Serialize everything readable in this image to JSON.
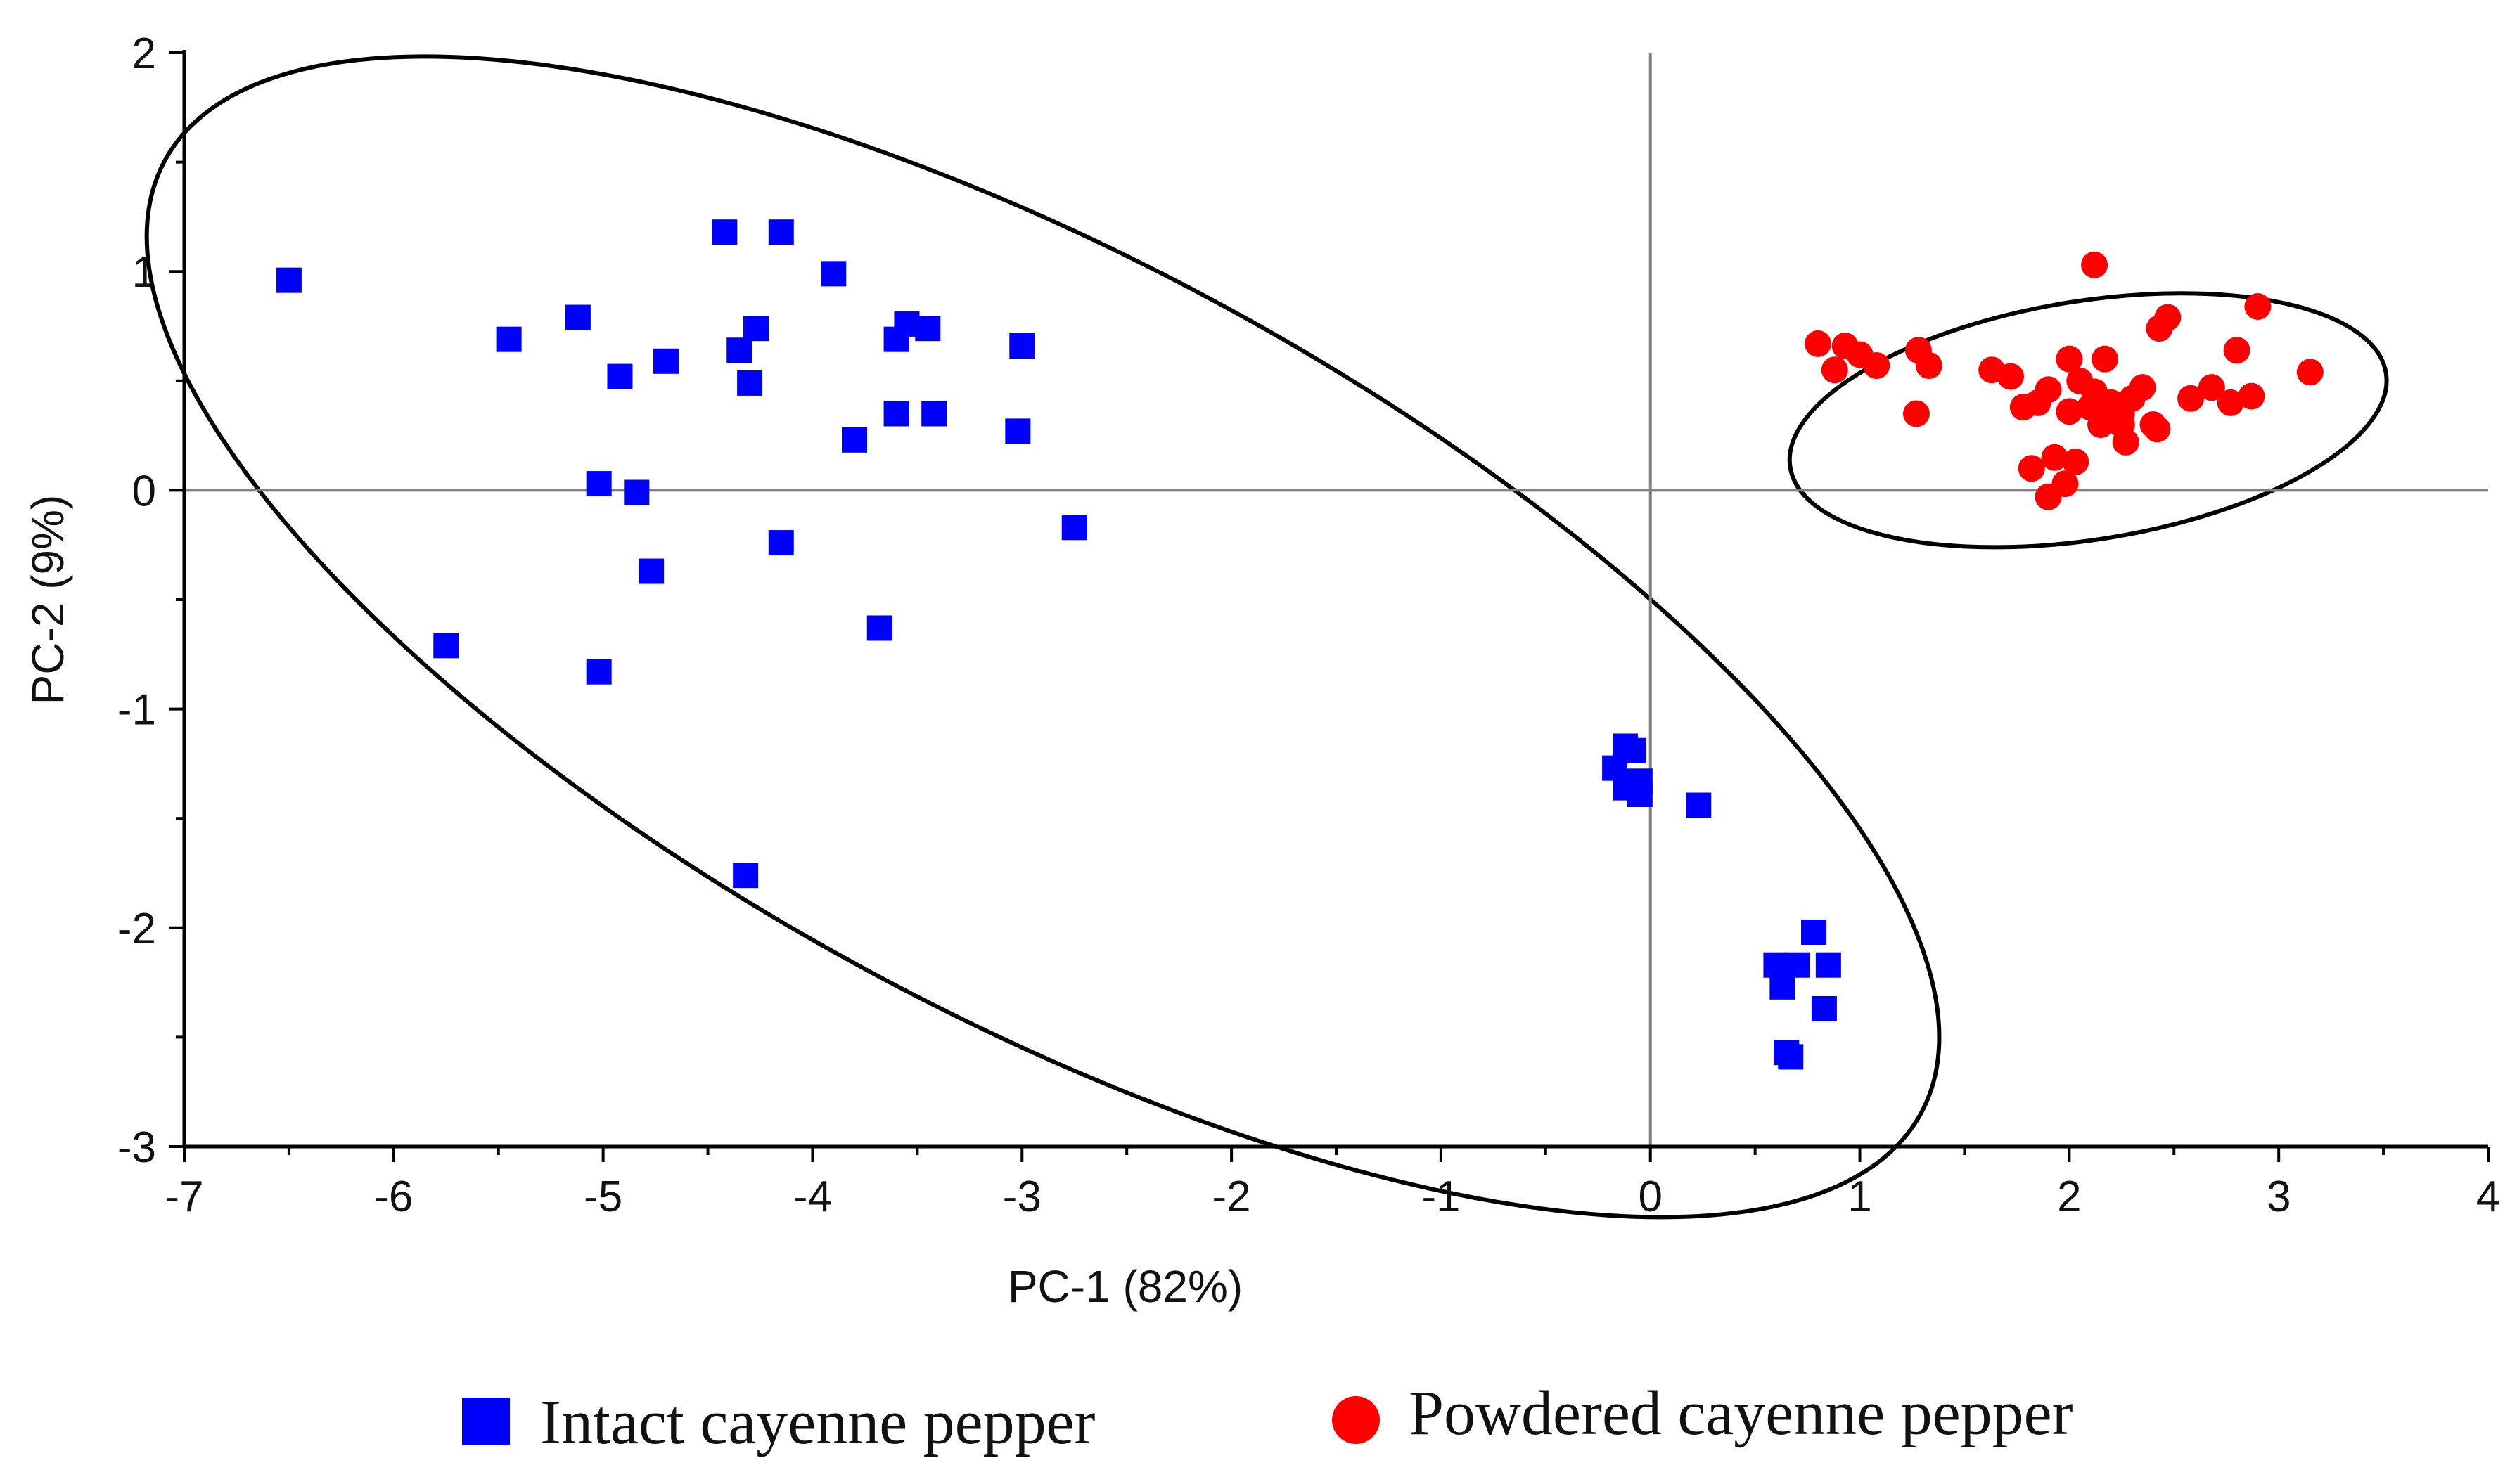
{
  "chart_data": {
    "type": "scatter",
    "title": "",
    "xlabel": "PC-1 (82%)",
    "ylabel": "PC-2 (9%)",
    "xlim": [
      -7,
      4
    ],
    "ylim": [
      -3,
      2
    ],
    "xticks": [
      -7,
      -6,
      -5,
      -4,
      -3,
      -2,
      -1,
      0,
      1,
      2,
      3,
      4
    ],
    "yticks": [
      -3,
      -2,
      -1,
      0,
      1,
      2
    ],
    "xtick_labels": [
      "-7",
      "-6",
      "-5",
      "-4",
      "-3",
      "-2",
      "-1",
      "0",
      "1",
      "2",
      "3",
      "4"
    ],
    "ytick_labels": [
      "-3",
      "-2",
      "-1",
      "0",
      "1",
      "2"
    ],
    "reference_lines": {
      "x": 0,
      "y": 0,
      "color": "#808080"
    },
    "grid": false,
    "legend_position": "bottom",
    "series": [
      {
        "name": "Intact cayenne pepper",
        "marker": "square",
        "color": "#0000ff",
        "points": [
          [
            -6.5,
            0.96
          ],
          [
            -5.45,
            0.69
          ],
          [
            -5.12,
            0.79
          ],
          [
            -4.92,
            0.52
          ],
          [
            -4.7,
            0.59
          ],
          [
            -4.42,
            1.18
          ],
          [
            -4.15,
            1.18
          ],
          [
            -4.35,
            0.64
          ],
          [
            -4.27,
            0.74
          ],
          [
            -4.3,
            0.49
          ],
          [
            -3.9,
            0.99
          ],
          [
            -3.6,
            0.69
          ],
          [
            -3.55,
            0.76
          ],
          [
            -3.45,
            0.74
          ],
          [
            -3.0,
            0.66
          ],
          [
            -3.8,
            0.23
          ],
          [
            -3.6,
            0.35
          ],
          [
            -3.42,
            0.35
          ],
          [
            -3.02,
            0.27
          ],
          [
            -2.75,
            -0.17
          ],
          [
            -5.02,
            0.03
          ],
          [
            -4.84,
            -0.01
          ],
          [
            -4.77,
            -0.37
          ],
          [
            -4.15,
            -0.24
          ],
          [
            -3.68,
            -0.63
          ],
          [
            -5.75,
            -0.71
          ],
          [
            -5.02,
            -0.83
          ],
          [
            -4.32,
            -1.76
          ],
          [
            -0.12,
            -1.17
          ],
          [
            -0.08,
            -1.19
          ],
          [
            -0.17,
            -1.27
          ],
          [
            -0.05,
            -1.33
          ],
          [
            -0.12,
            -1.36
          ],
          [
            -0.05,
            -1.39
          ],
          [
            0.23,
            -1.44
          ],
          [
            0.78,
            -2.02
          ],
          [
            0.6,
            -2.17
          ],
          [
            0.7,
            -2.17
          ],
          [
            0.85,
            -2.17
          ],
          [
            0.63,
            -2.27
          ],
          [
            0.83,
            -2.37
          ],
          [
            0.65,
            -2.57
          ],
          [
            0.67,
            -2.59
          ]
        ]
      },
      {
        "name": "Powdered cayenne pepper",
        "marker": "circle",
        "color": "#ff0000",
        "points": [
          [
            0.8,
            0.67
          ],
          [
            0.93,
            0.66
          ],
          [
            1.0,
            0.62
          ],
          [
            1.08,
            0.57
          ],
          [
            0.88,
            0.55
          ],
          [
            1.28,
            0.64
          ],
          [
            1.33,
            0.57
          ],
          [
            1.27,
            0.35
          ],
          [
            1.63,
            0.55
          ],
          [
            1.72,
            0.52
          ],
          [
            1.78,
            0.38
          ],
          [
            1.85,
            0.4
          ],
          [
            1.9,
            0.46
          ],
          [
            2.0,
            0.6
          ],
          [
            2.05,
            0.5
          ],
          [
            2.12,
            1.03
          ],
          [
            2.17,
            0.6
          ],
          [
            2.12,
            0.45
          ],
          [
            2.2,
            0.4
          ],
          [
            2.25,
            0.35
          ],
          [
            2.3,
            0.42
          ],
          [
            2.35,
            0.47
          ],
          [
            2.4,
            0.3
          ],
          [
            2.43,
            0.74
          ],
          [
            2.47,
            0.79
          ],
          [
            2.58,
            0.42
          ],
          [
            2.68,
            0.47
          ],
          [
            2.77,
            0.4
          ],
          [
            2.8,
            0.64
          ],
          [
            2.87,
            0.43
          ],
          [
            2.9,
            0.84
          ],
          [
            3.15,
            0.54
          ],
          [
            2.0,
            0.36
          ],
          [
            2.15,
            0.3
          ],
          [
            2.27,
            0.22
          ],
          [
            1.82,
            0.1
          ],
          [
            1.93,
            0.15
          ],
          [
            2.03,
            0.13
          ],
          [
            1.98,
            0.03
          ],
          [
            1.9,
            -0.03
          ],
          [
            2.2,
            0.35
          ],
          [
            2.1,
            0.38
          ],
          [
            2.25,
            0.3
          ],
          [
            2.42,
            0.28
          ]
        ]
      }
    ],
    "ellipses": [
      {
        "group": "Intact cayenne pepper",
        "center": [
          -2.9,
          -0.67
        ],
        "semi_major": 4.77,
        "semi_minor": 1.8,
        "angle_deg": -28.5,
        "color": "#000000"
      },
      {
        "group": "Powdered cayenne pepper",
        "center": [
          2.09,
          0.32
        ],
        "semi_major": 1.44,
        "semi_minor": 0.57,
        "angle_deg": 9,
        "color": "#000000"
      }
    ]
  }
}
